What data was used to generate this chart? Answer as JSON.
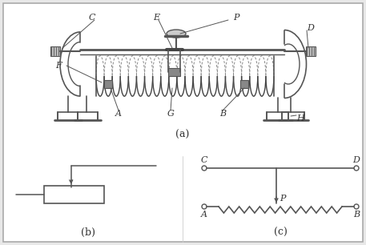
{
  "bg_color": "#ffffff",
  "border_color": "#888888",
  "line_color": "#555555",
  "label_color": "#333333",
  "title_a": "(a)",
  "title_b": "(b)",
  "title_c": "(c)",
  "font_size": 9,
  "label_font_size": 8,
  "fig_bg": "#e8e8e8",
  "panel_bg": "#f8f8f8"
}
